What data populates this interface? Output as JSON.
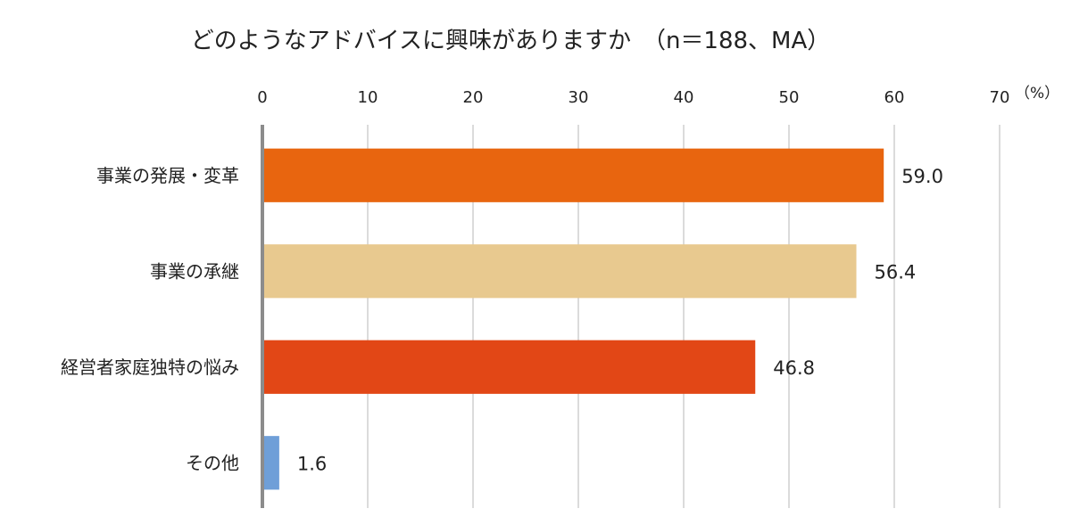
{
  "chart_data": {
    "type": "bar",
    "orientation": "horizontal",
    "title": "どのようなアドバイスに興味がありますか　（n＝188、MA）",
    "unit": "（%）",
    "xlim": [
      0,
      70
    ],
    "ticks": [
      0,
      10,
      20,
      30,
      40,
      50,
      60,
      70
    ],
    "tick_labels": [
      "0",
      "10",
      "20",
      "30",
      "40",
      "50",
      "60",
      "70"
    ],
    "grid": true,
    "categories": [
      "事業の発展・変革",
      "事業の承継",
      "経営者家庭独特の悩み",
      "その他"
    ],
    "values": [
      59.0,
      56.4,
      46.8,
      1.6
    ],
    "value_labels": [
      "59.0",
      "56.4",
      "46.8",
      "1.6"
    ],
    "bar_colors": [
      "#E8650F",
      "#E8C98F",
      "#E24716",
      "#6F9FD8"
    ],
    "axis_color": "#8c8c8c",
    "grid_color": "#cfcfcf"
  }
}
